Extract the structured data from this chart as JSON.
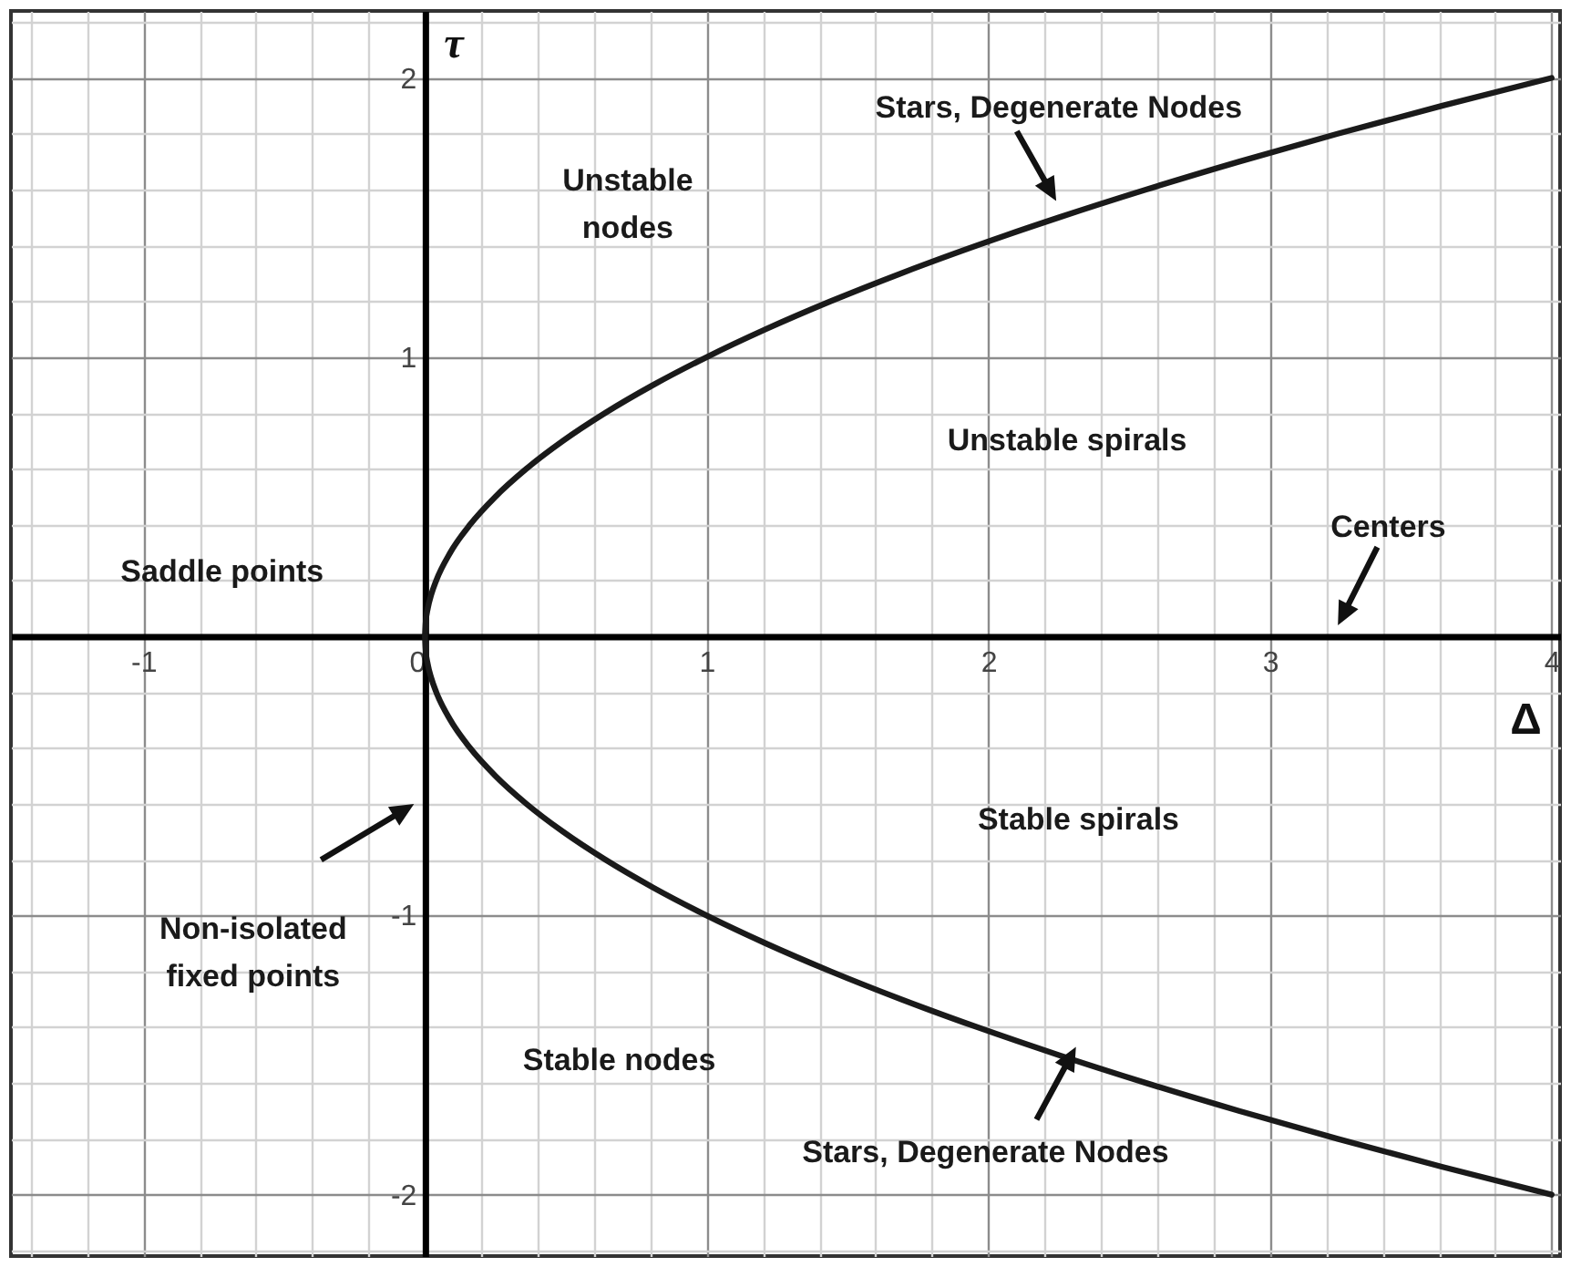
{
  "chart_data": {
    "type": "line",
    "xlabel": "Δ",
    "ylabel": "τ",
    "xlim": [
      -1.47,
      4.03
    ],
    "ylim": [
      -2.22,
      2.24
    ],
    "xticks": [
      {
        "value": -1.4,
        "label": null
      },
      {
        "value": -1.2,
        "label": null
      },
      -1,
      {
        "value": -0.8,
        "label": null
      },
      {
        "value": -0.6,
        "label": null
      },
      {
        "value": -0.4,
        "label": null
      },
      {
        "value": -0.2,
        "label": null
      },
      0,
      {
        "value": 0.2,
        "label": null
      },
      {
        "value": 0.4,
        "label": null
      },
      {
        "value": 0.6,
        "label": null
      },
      {
        "value": 0.8,
        "label": null
      },
      1,
      {
        "value": 1.2,
        "label": null
      },
      {
        "value": 1.4,
        "label": null
      },
      {
        "value": 1.6,
        "label": null
      },
      {
        "value": 1.8,
        "label": null
      },
      2,
      {
        "value": 2.2,
        "label": null
      },
      {
        "value": 2.4,
        "label": null
      },
      {
        "value": 2.6,
        "label": null
      },
      {
        "value": 2.8,
        "label": null
      },
      3,
      {
        "value": 3.2,
        "label": null
      },
      {
        "value": 3.4,
        "label": null
      },
      {
        "value": 3.6,
        "label": null
      },
      {
        "value": 3.8,
        "label": null
      },
      4
    ],
    "yticks": [
      {
        "value": -2.2,
        "label": null
      },
      -2,
      {
        "value": -1.8,
        "label": null
      },
      {
        "value": -1.6,
        "label": null
      },
      {
        "value": -1.4,
        "label": null
      },
      {
        "value": -1.2,
        "label": null
      },
      -1,
      {
        "value": -0.8,
        "label": null
      },
      {
        "value": -0.6,
        "label": null
      },
      {
        "value": -0.4,
        "label": null
      },
      {
        "value": -0.2,
        "label": null
      },
      {
        "value": 0,
        "label": null
      },
      {
        "value": 0.2,
        "label": null
      },
      {
        "value": 0.4,
        "label": null
      },
      {
        "value": 0.6,
        "label": null
      },
      {
        "value": 0.8,
        "label": null
      },
      1,
      {
        "value": 1.2,
        "label": null
      },
      {
        "value": 1.4,
        "label": null
      },
      {
        "value": 1.6,
        "label": null
      },
      {
        "value": 1.8,
        "label": null
      },
      2,
      {
        "value": 2.2,
        "label": null
      }
    ],
    "grid": true,
    "series": [
      {
        "color": "#1a1a1a",
        "x": [
          0,
          0.0025,
          0.01,
          0.0225,
          0.04,
          0.09,
          0.16,
          0.25,
          0.36,
          0.49,
          0.64,
          0.81,
          1,
          1.21,
          1.44,
          1.69,
          1.96,
          2.25,
          2.56,
          2.89,
          3.24,
          3.61,
          4
        ],
        "values": [
          0,
          0.05,
          0.1,
          0.15,
          0.2,
          0.3,
          0.4,
          0.5,
          0.6,
          0.7,
          0.8,
          0.9,
          1,
          1.1,
          1.2,
          1.3,
          1.4,
          1.5,
          1.6,
          1.7,
          1.8,
          1.9,
          2
        ]
      },
      {
        "color": "#1a1a1a",
        "x": [
          0,
          0.0025,
          0.01,
          0.0225,
          0.04,
          0.09,
          0.16,
          0.25,
          0.36,
          0.49,
          0.64,
          0.81,
          1,
          1.21,
          1.44,
          1.69,
          1.96,
          2.25,
          2.56,
          2.89,
          3.24,
          3.61,
          4
        ],
        "values": [
          0,
          -0.05,
          -0.1,
          -0.15,
          -0.2,
          -0.3,
          -0.4,
          -0.5,
          -0.6,
          -0.7,
          -0.8,
          -0.9,
          -1,
          -1.1,
          -1.2,
          -1.3,
          -1.4,
          -1.5,
          -1.6,
          -1.7,
          -1.8,
          -1.9,
          -2
        ]
      }
    ],
    "annotations": [
      "Unstable nodes",
      {
        "text": "Stars, Degenerate Nodes",
        "x": 2.28,
        "y": 1.52
      },
      "Unstable spirals",
      "Centers",
      "Saddle points",
      "Stable spirals",
      "Non-isolated fixed points",
      "Stable nodes",
      {
        "text": "Stars, Degenerate Nodes",
        "x": 2.35,
        "y": -1.51
      }
    ]
  }
}
